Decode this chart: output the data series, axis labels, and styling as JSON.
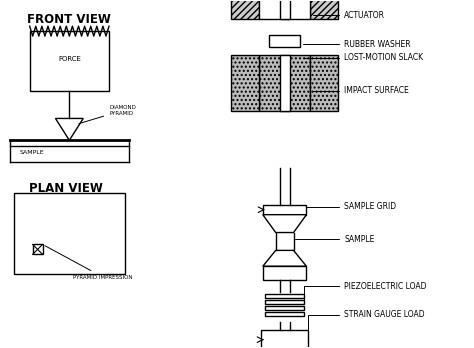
{
  "bg_color": "#ffffff",
  "line_color": "#000000",
  "label_fontsize": 5.5,
  "title_fontsize": 8.5,
  "labels": {
    "front_view": "FRONT VIEW",
    "plan_view": "PLAN VIEW",
    "force": "FORCE",
    "sample_left": "SAMPLE",
    "diamond_pyramid": "DIAMOND\nPYRAMID",
    "pyramid_impression": "PYRAMID IMPRESSION",
    "actuator": "ACTUATOR",
    "rubber_washer": "RUBBER WASHER",
    "lost_motion": "LOST-MOTION SLACK",
    "impact_surface": "IMPACT SURFACE",
    "sample_grid": "SAMPLE GRID",
    "sample_right": "SAMPLE",
    "piezoelectric": "PIEZOELECTRIC LOAD",
    "strain_gauge": "STRAIN GAUGE LOAD"
  }
}
